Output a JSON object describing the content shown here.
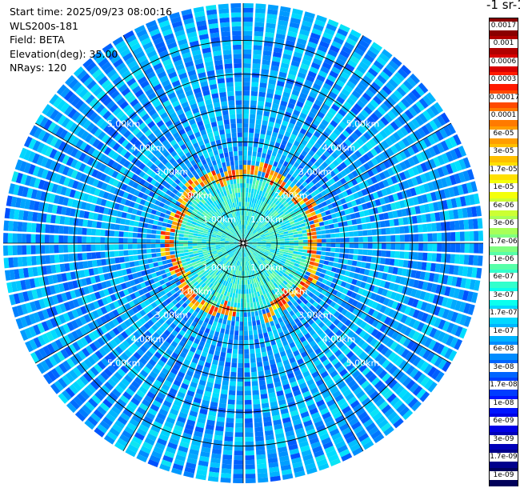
{
  "header": {
    "start_time": "Start time: 2025/09/23 08:00:16",
    "instrument": "WLS200s-181",
    "field": "Field: BETA",
    "elevation": "Elevation(deg): 35.00",
    "nrays": "NRays: 120"
  },
  "colorbar": {
    "title": "-1 sr-1",
    "labels": [
      "0.0017",
      "0.001",
      "0.0006",
      "0.0003",
      "0.00017",
      "0.0001",
      "6e-05",
      "3e-05",
      "1.7e-05",
      "1e-05",
      "6e-06",
      "3e-06",
      "1.7e-06",
      "1e-06",
      "6e-07",
      "3e-07",
      "1.7e-07",
      "1e-07",
      "6e-08",
      "3e-08",
      "1.7e-08",
      "1e-08",
      "6e-09",
      "3e-09",
      "1.7e-09",
      "1e-09"
    ],
    "colors": [
      "#8a0000",
      "#b00000",
      "#d80000",
      "#ff1a00",
      "#ff4a00",
      "#ff7a00",
      "#ff9d00",
      "#ffbf00",
      "#ffe000",
      "#f4ff0a",
      "#ccff33",
      "#a8ff57",
      "#80ff80",
      "#57ffa8",
      "#33ffcc",
      "#0affee",
      "#00d8ff",
      "#00b4ff",
      "#008cff",
      "#0064ff",
      "#003cff",
      "#0014ff",
      "#0000e6",
      "#0000b8",
      "#00008c",
      "#00005a"
    ]
  },
  "chart_data": {
    "type": "heatmap",
    "projection": "polar-ppi",
    "nrays": 120,
    "field": "BETA",
    "elevation_deg": 35.0,
    "range_rings_km": [
      1,
      2,
      3,
      4,
      5,
      6
    ],
    "range_ring_labels": [
      "1.00km",
      "2.00km",
      "3.00km",
      "4.00km",
      "5.00km"
    ],
    "max_range_km": 7.1,
    "radial_spokes_deg": [
      0,
      30,
      60,
      90,
      120,
      150,
      180,
      210,
      240,
      270,
      300,
      330
    ],
    "colorscale": "log-jet",
    "vmin": 1e-09,
    "vmax": 0.0017,
    "features": {
      "background_beta": 7e-08,
      "inner_region_beta": 3e-07,
      "ring_beta": 3e-05,
      "ring_radius_km": [
        2.0,
        2.3
      ]
    }
  }
}
